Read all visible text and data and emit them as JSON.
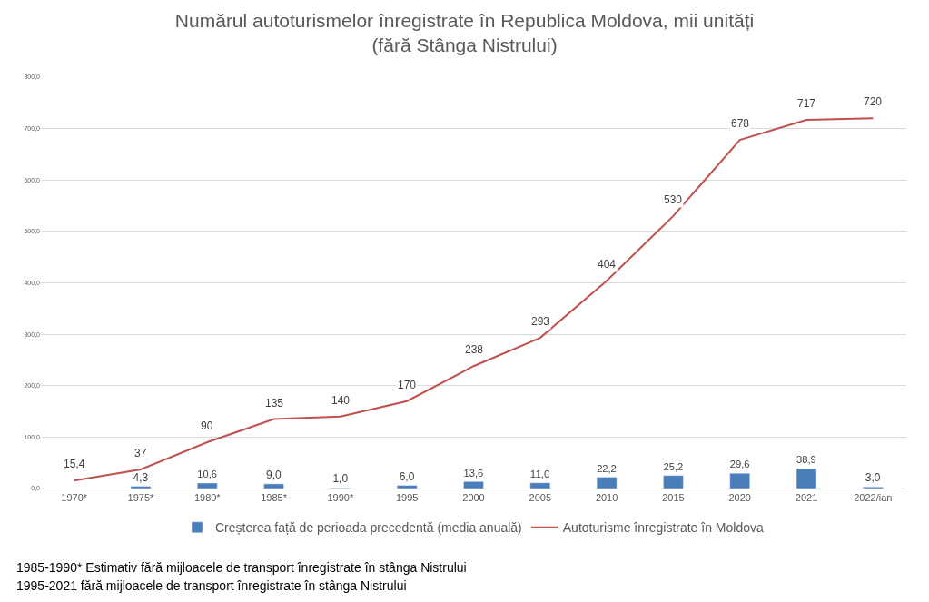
{
  "chart_data": {
    "type": "bar",
    "title": "Numărul autoturismelor înregistrate în Republica Moldova, mii unități\n(fără Stânga Nistrului)",
    "categories": [
      "1970*",
      "1975*",
      "1980*",
      "1985*",
      "1990*",
      "1995",
      "2000",
      "2005",
      "2010",
      "2015",
      "2020",
      "2021",
      "2022/ian"
    ],
    "series": [
      {
        "name": "Creșterea față de perioada precedentă (media anuală)",
        "color": "#4a7ebb",
        "values": [
          null,
          4.3,
          10.6,
          9.0,
          1.0,
          6.0,
          13.6,
          11.0,
          22.2,
          25.2,
          29.6,
          38.9,
          3.0
        ],
        "value_labels": [
          null,
          "4,3",
          "10,6",
          "9,0",
          "1,0",
          "6,0",
          "13,6",
          "11,0",
          "22,2",
          "25,2",
          "29,6",
          "38,9",
          "3,0"
        ]
      },
      {
        "name": "Autoturisme înregistrate în Moldova",
        "type": "line",
        "color": "#c0504d",
        "values": [
          15.4,
          37,
          90,
          135,
          140,
          170,
          238,
          293,
          404,
          530,
          678,
          717,
          720
        ],
        "value_labels": [
          "15,4",
          "37",
          "90",
          "135",
          "140",
          "170",
          "238",
          "293",
          "404",
          "530",
          "678",
          "717",
          "720"
        ]
      }
    ],
    "ylim": [
      0,
      800
    ],
    "yticks": [
      {
        "value": 0,
        "label": "0,0"
      },
      {
        "value": 100,
        "label": "100,0"
      },
      {
        "value": 200,
        "label": "200,0"
      },
      {
        "value": 300,
        "label": "300,0"
      },
      {
        "value": 400,
        "label": "400,0"
      },
      {
        "value": 500,
        "label": "500,0"
      },
      {
        "value": 600,
        "label": "600,0"
      },
      {
        "value": 700,
        "label": "700,0"
      },
      {
        "value": 800,
        "label": "800,0"
      }
    ],
    "grid": "y",
    "legend": "bottom",
    "marker": "none",
    "annotations": [
      "1985-1990* Estimativ fără mijloacele de transport înregistrate în stânga Nistrului",
      "1995-2021 fără mijloacele de transport înregistrate în stânga Nistrului"
    ]
  }
}
